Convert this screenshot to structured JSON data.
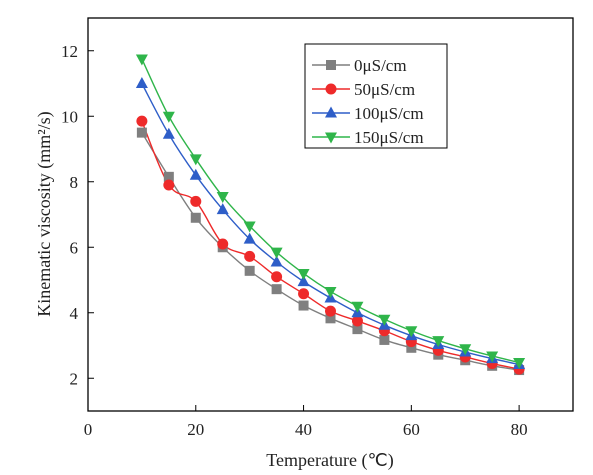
{
  "chart_data": {
    "type": "line",
    "xlabel": "Temperature (℃)",
    "ylabel": "Kinematic viscosity (mm²/s)",
    "xlim": [
      0,
      90
    ],
    "ylim": [
      1,
      13
    ],
    "xticks": [
      0,
      20,
      40,
      60,
      80
    ],
    "yticks": [
      2,
      4,
      6,
      8,
      10,
      12
    ],
    "grid": false,
    "legend_position": "top-right",
    "x": [
      10,
      15,
      20,
      25,
      30,
      35,
      40,
      45,
      50,
      55,
      60,
      65,
      70,
      75,
      80
    ],
    "series": [
      {
        "name": "0μS/cm",
        "color": "#7f7f7f",
        "marker": "square",
        "values": [
          9.5,
          8.15,
          6.9,
          6.0,
          5.28,
          4.72,
          4.22,
          3.83,
          3.5,
          3.17,
          2.93,
          2.72,
          2.55,
          2.38,
          2.25
        ]
      },
      {
        "name": "50μS/cm",
        "color": "#ee2a2a",
        "marker": "circle",
        "values": [
          9.85,
          7.9,
          7.4,
          6.1,
          5.72,
          5.1,
          4.58,
          4.05,
          3.75,
          3.45,
          3.12,
          2.85,
          2.65,
          2.45,
          2.28
        ]
      },
      {
        "name": "100μS/cm",
        "color": "#2e5ec8",
        "marker": "triangle-up",
        "values": [
          11.0,
          9.45,
          8.2,
          7.15,
          6.25,
          5.55,
          4.95,
          4.45,
          4.0,
          3.62,
          3.3,
          3.03,
          2.8,
          2.6,
          2.42
        ]
      },
      {
        "name": "150μS/cm",
        "color": "#2fb54a",
        "marker": "triangle-down",
        "values": [
          11.75,
          10.0,
          8.7,
          7.55,
          6.65,
          5.85,
          5.2,
          4.65,
          4.2,
          3.8,
          3.45,
          3.15,
          2.9,
          2.68,
          2.48
        ]
      }
    ]
  }
}
